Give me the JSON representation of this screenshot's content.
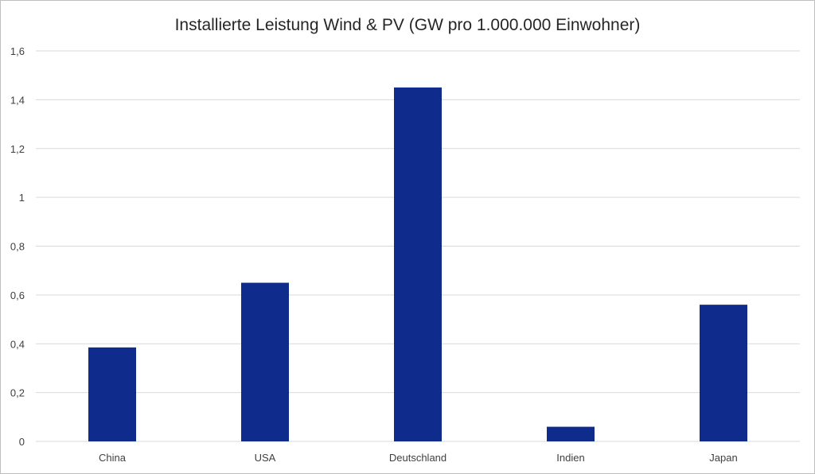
{
  "chart_data": {
    "type": "bar",
    "title": "Installierte Leistung Wind & PV (GW pro 1.000.000 Einwohner)",
    "xlabel": "",
    "ylabel": "",
    "categories": [
      "China",
      "USA",
      "Deutschland",
      "Indien",
      "Japan"
    ],
    "values": [
      0.385,
      0.65,
      1.45,
      0.06,
      0.56
    ],
    "ylim": [
      0,
      1.6
    ],
    "yticks": [
      0,
      0.2,
      0.4,
      0.6,
      0.8,
      1,
      1.2,
      1.4,
      1.6
    ],
    "ytick_labels": [
      "0",
      "0,2",
      "0,4",
      "0,6",
      "0,8",
      "1",
      "1,2",
      "1,4",
      "1,6"
    ],
    "grid": true,
    "legend": "none",
    "bar_color": "#0f2b8c",
    "grid_color": "#d9d9d9"
  }
}
